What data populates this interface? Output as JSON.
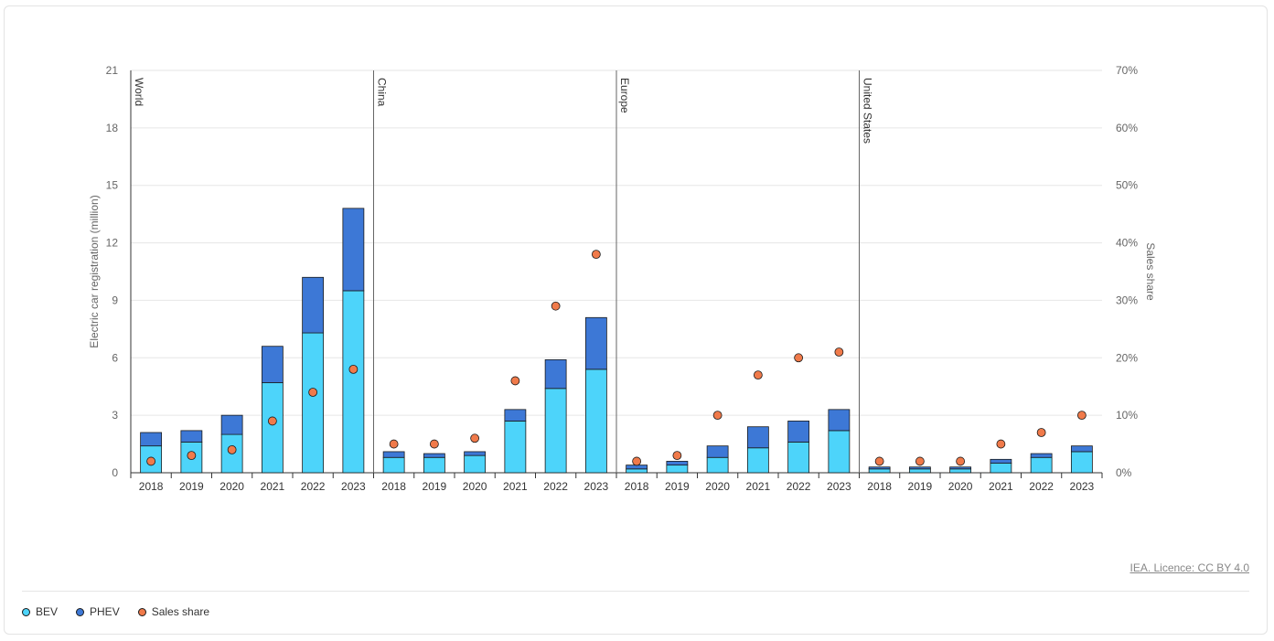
{
  "chart_data": {
    "type": "bar",
    "stacked": true,
    "panels": [
      "World",
      "China",
      "Europe",
      "United States"
    ],
    "categories": [
      "2018",
      "2019",
      "2020",
      "2021",
      "2022",
      "2023"
    ],
    "ylabel": "Electric car registration (million)",
    "y2label": "Sales share",
    "ylim": [
      0,
      21
    ],
    "yticks": [
      "0",
      "3",
      "6",
      "9",
      "12",
      "15",
      "18",
      "21"
    ],
    "y2lim": [
      0,
      70
    ],
    "y2ticks": [
      "0%",
      "10%",
      "20%",
      "30%",
      "40%",
      "50%",
      "60%",
      "70%"
    ],
    "grid": true,
    "legend_position": "bottom-left",
    "series": [
      {
        "name": "BEV",
        "color": "#4dd4fa",
        "values": [
          [
            1.4,
            1.6,
            2.0,
            4.7,
            7.3,
            9.5
          ],
          [
            0.8,
            0.8,
            0.9,
            2.7,
            4.4,
            5.4
          ],
          [
            0.2,
            0.4,
            0.8,
            1.3,
            1.6,
            2.2
          ],
          [
            0.2,
            0.2,
            0.2,
            0.5,
            0.8,
            1.1
          ]
        ]
      },
      {
        "name": "PHEV",
        "color": "#3d78d6",
        "values": [
          [
            0.7,
            0.6,
            1.0,
            1.9,
            2.9,
            4.3
          ],
          [
            0.3,
            0.2,
            0.2,
            0.6,
            1.5,
            2.7
          ],
          [
            0.2,
            0.2,
            0.6,
            1.1,
            1.1,
            1.1
          ],
          [
            0.1,
            0.1,
            0.1,
            0.2,
            0.2,
            0.3
          ]
        ]
      },
      {
        "name": "Sales share",
        "color": "#f07a4a",
        "axis": "secondary",
        "values": [
          [
            2,
            3,
            4,
            9,
            14,
            18
          ],
          [
            5,
            5,
            6,
            16,
            29,
            38
          ],
          [
            2,
            3,
            10,
            17,
            20,
            21
          ],
          [
            2,
            2,
            2,
            5,
            7,
            10
          ]
        ]
      }
    ]
  },
  "footer": {
    "credit": "IEA. Licence: CC BY 4.0"
  },
  "legend": [
    {
      "label": "BEV",
      "color": "#4dd4fa"
    },
    {
      "label": "PHEV",
      "color": "#3d78d6"
    },
    {
      "label": "Sales share",
      "color": "#f07a4a"
    }
  ]
}
